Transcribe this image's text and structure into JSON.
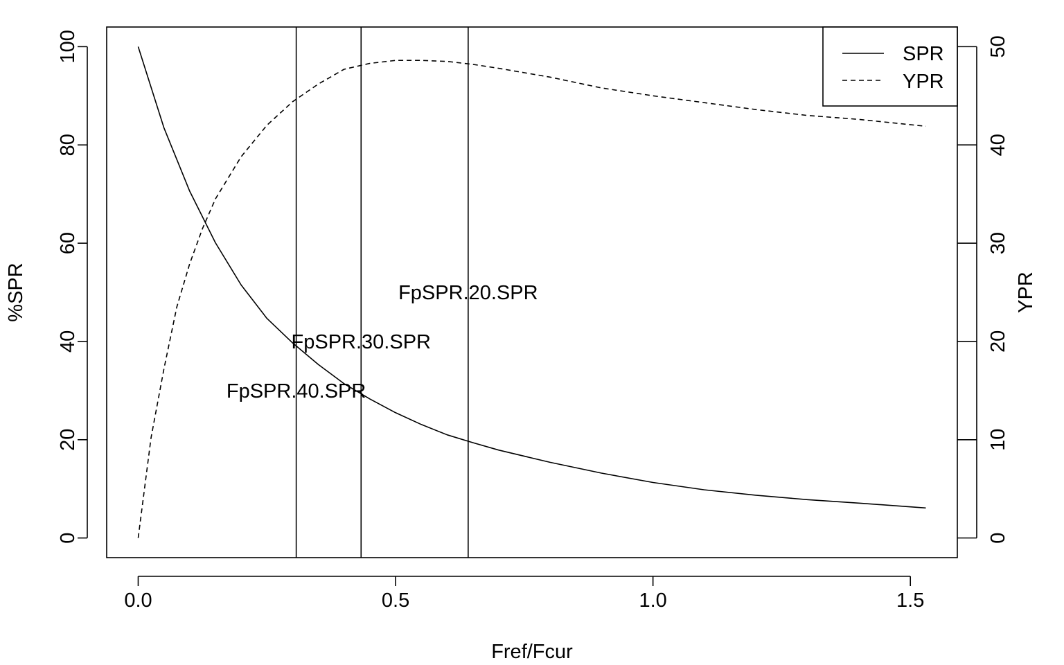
{
  "chart_data": {
    "type": "line",
    "title": "",
    "xlabel": "Fref/Fcur",
    "ylabel": "%SPR",
    "ylabel_right": "YPR",
    "xlim": [
      -0.0612,
      1.5912
    ],
    "ylim": [
      -4,
      104
    ],
    "ylim_right": [
      -2,
      52
    ],
    "x_ticks": [
      0.0,
      0.5,
      1.0,
      1.5
    ],
    "x_tick_labels": [
      "0.0",
      "0.5",
      "1.0",
      "1.5"
    ],
    "y_ticks": [
      0,
      20,
      40,
      60,
      80,
      100
    ],
    "y_tick_labels": [
      "0",
      "20",
      "40",
      "60",
      "80",
      "100"
    ],
    "y_right_ticks": [
      0,
      10,
      20,
      30,
      40,
      50
    ],
    "y_right_tick_labels": [
      "0",
      "10",
      "20",
      "30",
      "40",
      "50"
    ],
    "grid": false,
    "legend_position": "top-right",
    "legend": [
      {
        "label": "SPR",
        "style": "solid"
      },
      {
        "label": "YPR",
        "style": "dashed"
      }
    ],
    "series": [
      {
        "name": "SPR",
        "axis": "left",
        "style": "solid",
        "x": [
          0.0,
          0.05,
          0.1,
          0.15,
          0.2,
          0.25,
          0.3,
          0.35,
          0.4,
          0.45,
          0.5,
          0.55,
          0.6,
          0.65,
          0.7,
          0.8,
          0.9,
          1.0,
          1.1,
          1.2,
          1.3,
          1.4,
          1.53
        ],
        "values": [
          100,
          83.5,
          70.6,
          60.1,
          51.5,
          44.7,
          39.7,
          35.3,
          31.4,
          28.3,
          25.5,
          23.1,
          21.0,
          19.4,
          17.9,
          15.4,
          13.2,
          11.3,
          9.8,
          8.7,
          7.8,
          7.1,
          6.1
        ]
      },
      {
        "name": "YPR",
        "axis": "right",
        "style": "dashed",
        "x": [
          0.0,
          0.025,
          0.05,
          0.075,
          0.1,
          0.125,
          0.15,
          0.2,
          0.25,
          0.3,
          0.35,
          0.4,
          0.45,
          0.5,
          0.55,
          0.6,
          0.65,
          0.7,
          0.8,
          0.9,
          1.0,
          1.1,
          1.2,
          1.3,
          1.4,
          1.53
        ],
        "values": [
          0,
          10.2,
          17.2,
          23.5,
          27.9,
          31.5,
          34.5,
          38.8,
          42.0,
          44.4,
          46.2,
          47.7,
          48.3,
          48.6,
          48.6,
          48.5,
          48.2,
          47.8,
          46.9,
          45.8,
          45.0,
          44.3,
          43.6,
          43.0,
          42.6,
          41.9
        ]
      }
    ],
    "vlines": [
      {
        "x": 0.307,
        "label": "FpSPR.40.SPR",
        "label_y": 30
      },
      {
        "x": 0.433,
        "label": "FpSPR.30.SPR",
        "label_y": 40
      },
      {
        "x": 0.641,
        "label": "FpSPR.20.SPR",
        "label_y": 50
      }
    ]
  }
}
